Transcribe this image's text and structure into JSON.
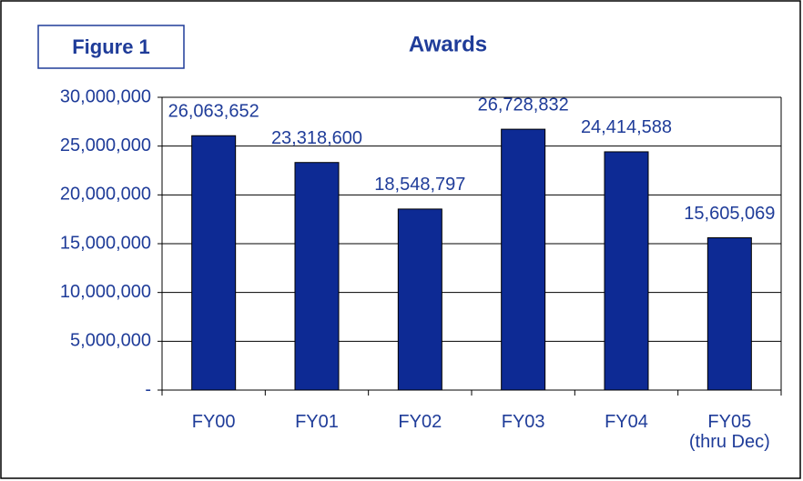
{
  "chart_data": {
    "type": "bar",
    "title": "Awards",
    "annotation": "Figure 1",
    "categories": [
      "FY00",
      "FY01",
      "FY02",
      "FY03",
      "FY04",
      "FY05\n(thru Dec)"
    ],
    "values": [
      26063652,
      23318600,
      18548797,
      26728832,
      24414588,
      15605069
    ],
    "value_labels": [
      "26,063,652",
      "23,318,600",
      "18,548,797",
      "26,728,832",
      "24,414,588",
      "15,605,069"
    ],
    "color": "#0d2a94",
    "ylim": [
      0,
      30000000
    ],
    "yticks": [
      {
        "value": 0,
        "label": "-"
      },
      {
        "value": 5000000,
        "label": "5,000,000"
      },
      {
        "value": 10000000,
        "label": "10,000,000"
      },
      {
        "value": 15000000,
        "label": "15,000,000"
      },
      {
        "value": 20000000,
        "label": "20,000,000"
      },
      {
        "value": 25000000,
        "label": "25,000,000"
      },
      {
        "value": 30000000,
        "label": "30,000,000"
      }
    ],
    "grid": true
  }
}
